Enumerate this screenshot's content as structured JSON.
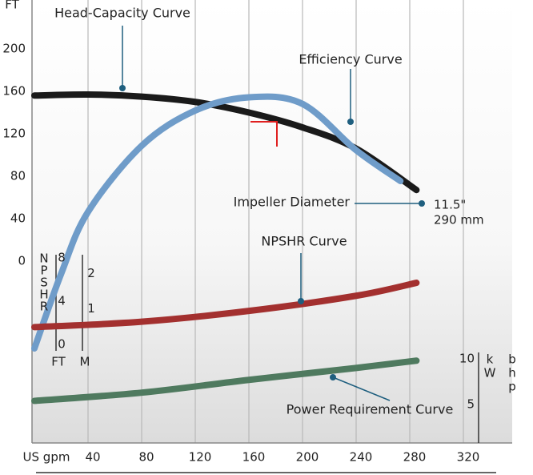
{
  "chart_data": {
    "type": "line",
    "y_label": "FT",
    "x_label": "US gpm",
    "xlim": [
      0,
      360
    ],
    "xticks": [
      40,
      80,
      120,
      160,
      200,
      240,
      280,
      320
    ],
    "ylim": [
      0,
      240
    ],
    "yticks": [
      0,
      40,
      80,
      120,
      160,
      200
    ],
    "y2lim": [
      0,
      80
    ],
    "npsh_letters": [
      "N",
      "P",
      "S",
      "H",
      "R"
    ],
    "npsh_ft_unit": "FT",
    "npsh_ft_ylim": [
      0,
      8
    ],
    "npsh_ft_ticks": [
      0,
      4,
      8
    ],
    "npsh_m_unit": "M",
    "npsh_m_ylim": [
      0,
      2.44
    ],
    "npsh_m_ticks": [
      1,
      2
    ],
    "power_kw_letters": [
      "k",
      "W"
    ],
    "power_bhp_letters": [
      "b",
      "h",
      "p"
    ],
    "power_ylim": [
      0,
      10
    ],
    "power_ticks": [
      5,
      10
    ],
    "impeller_label": "Impeller Diameter",
    "impeller_diameter_in": "11.5\"",
    "impeller_diameter_mm": "290 mm",
    "series": [
      {
        "name": "Head-Capacity Curve",
        "color": "#1a1a1a",
        "axis": "y",
        "x": [
          0,
          40,
          80,
          120,
          160,
          200,
          240,
          285
        ],
        "values": [
          156,
          157,
          155,
          150,
          140,
          126,
          106,
          67
        ]
      },
      {
        "name": "Efficiency Curve",
        "color": "#6f9cc9",
        "axis": "y2",
        "x": [
          0,
          20,
          40,
          80,
          120,
          160,
          200,
          240,
          273
        ],
        "values": [
          0,
          17,
          31,
          46,
          54,
          57,
          55.5,
          45,
          38
        ]
      },
      {
        "name": "NPSHR Curve",
        "color": "#a3302f",
        "axis": "npsh",
        "x": [
          0,
          80,
          160,
          240,
          285
        ],
        "values": [
          1.6,
          2.1,
          3.1,
          4.5,
          5.7
        ]
      },
      {
        "name": "Power Requirement Curve",
        "color": "#4f7a5f",
        "axis": "power",
        "x": [
          0,
          80,
          160,
          240,
          285
        ],
        "values": [
          5.4,
          6.3,
          7.7,
          9.0,
          9.8
        ]
      }
    ]
  }
}
